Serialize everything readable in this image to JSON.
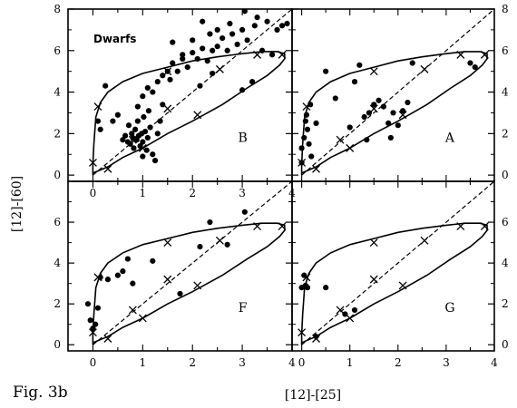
{
  "figure": {
    "caption": "Fig. 3b",
    "xlabel": "[12]-[25]",
    "ylabel": "[12]-[60]",
    "annotation": "Dwarfs"
  },
  "chart_data": [
    {
      "type": "scatter",
      "panel": "B",
      "position": "top-left",
      "xlim": [
        -0.5,
        4
      ],
      "ylim": [
        -0.3,
        8
      ],
      "x_ticks": [
        0,
        1,
        2,
        3,
        4
      ],
      "y_ticks": [
        0,
        2,
        4,
        6,
        8
      ],
      "annotation": "Dwarfs",
      "points": [
        [
          0.1,
          2.6
        ],
        [
          0.15,
          2.2
        ],
        [
          0.25,
          4.3
        ],
        [
          0.4,
          2.6
        ],
        [
          0.5,
          2.9
        ],
        [
          0.6,
          1.7
        ],
        [
          0.65,
          1.9
        ],
        [
          0.7,
          1.6
        ],
        [
          0.72,
          2.4
        ],
        [
          0.75,
          1.5
        ],
        [
          0.78,
          2.0
        ],
        [
          0.8,
          1.8
        ],
        [
          0.82,
          1.3
        ],
        [
          0.85,
          2.2
        ],
        [
          0.88,
          1.7
        ],
        [
          0.9,
          2.6
        ],
        [
          0.92,
          1.9
        ],
        [
          0.95,
          1.4
        ],
        [
          0.98,
          2.0
        ],
        [
          1.0,
          1.6
        ],
        [
          1.02,
          2.8
        ],
        [
          1.05,
          2.1
        ],
        [
          1.08,
          1.2
        ],
        [
          1.1,
          1.8
        ],
        [
          1.12,
          3.1
        ],
        [
          1.15,
          2.3
        ],
        [
          1.2,
          1.0
        ],
        [
          1.25,
          0.7
        ],
        [
          1.3,
          2.0
        ],
        [
          1.35,
          2.6
        ],
        [
          1.4,
          3.4
        ],
        [
          0.9,
          3.3
        ],
        [
          1.0,
          3.8
        ],
        [
          1.1,
          4.2
        ],
        [
          1.2,
          4.0
        ],
        [
          1.3,
          4.5
        ],
        [
          1.4,
          4.8
        ],
        [
          1.5,
          5.0
        ],
        [
          1.55,
          4.6
        ],
        [
          1.6,
          5.4
        ],
        [
          1.7,
          5.0
        ],
        [
          1.8,
          5.6
        ],
        [
          1.9,
          5.2
        ],
        [
          2.0,
          5.9
        ],
        [
          2.0,
          6.5
        ],
        [
          2.1,
          5.6
        ],
        [
          2.2,
          6.1
        ],
        [
          2.2,
          7.4
        ],
        [
          2.3,
          5.5
        ],
        [
          2.35,
          6.8
        ],
        [
          2.4,
          6.0
        ],
        [
          2.5,
          6.2
        ],
        [
          2.5,
          7.0
        ],
        [
          2.6,
          6.6
        ],
        [
          2.7,
          6.0
        ],
        [
          2.75,
          7.3
        ],
        [
          2.8,
          6.8
        ],
        [
          2.9,
          6.3
        ],
        [
          3.0,
          7.0
        ],
        [
          3.05,
          7.9
        ],
        [
          3.1,
          6.5
        ],
        [
          3.25,
          7.2
        ],
        [
          3.3,
          7.6
        ],
        [
          3.4,
          6.0
        ],
        [
          3.5,
          7.4
        ],
        [
          3.6,
          5.8
        ],
        [
          3.7,
          7.0
        ],
        [
          3.8,
          7.2
        ],
        [
          3.9,
          7.3
        ],
        [
          1.6,
          6.4
        ],
        [
          1.8,
          5.8
        ],
        [
          2.15,
          4.3
        ],
        [
          2.4,
          4.9
        ],
        [
          3.0,
          4.1
        ],
        [
          3.2,
          4.5
        ],
        [
          1.0,
          0.9
        ]
      ]
    },
    {
      "type": "scatter",
      "panel": "A",
      "position": "top-right",
      "xlim": [
        -0.2,
        4
      ],
      "ylim": [
        -0.3,
        8
      ],
      "x_ticks": [],
      "y_ticks": [
        0,
        2,
        4,
        6,
        8
      ],
      "points": [
        [
          0.0,
          0.6
        ],
        [
          0.0,
          1.3
        ],
        [
          0.05,
          1.8
        ],
        [
          0.08,
          2.6
        ],
        [
          0.1,
          2.9
        ],
        [
          0.12,
          2.2
        ],
        [
          0.15,
          1.5
        ],
        [
          0.18,
          3.4
        ],
        [
          0.2,
          0.9
        ],
        [
          0.3,
          2.5
        ],
        [
          0.5,
          5.0
        ],
        [
          0.7,
          3.7
        ],
        [
          1.0,
          2.3
        ],
        [
          1.1,
          4.5
        ],
        [
          1.2,
          5.3
        ],
        [
          1.3,
          2.8
        ],
        [
          1.35,
          1.7
        ],
        [
          1.4,
          3.0
        ],
        [
          1.5,
          3.4
        ],
        [
          1.6,
          3.6
        ],
        [
          1.7,
          3.3
        ],
        [
          1.8,
          2.5
        ],
        [
          1.85,
          1.8
        ],
        [
          1.9,
          3.0
        ],
        [
          2.0,
          2.4
        ],
        [
          2.1,
          3.1
        ],
        [
          2.2,
          3.5
        ],
        [
          2.3,
          5.4
        ],
        [
          3.5,
          5.4
        ],
        [
          3.6,
          5.2
        ]
      ]
    },
    {
      "type": "scatter",
      "panel": "F",
      "position": "bottom-left",
      "xlim": [
        -0.5,
        4
      ],
      "ylim": [
        -0.3,
        8
      ],
      "x_ticks": [
        0,
        1,
        2,
        3,
        4
      ],
      "y_ticks": [
        0,
        2,
        4,
        6
      ],
      "points": [
        [
          -0.1,
          2.0
        ],
        [
          -0.05,
          1.2
        ],
        [
          0.0,
          0.8
        ],
        [
          0.05,
          1.0
        ],
        [
          0.1,
          1.8
        ],
        [
          0.15,
          3.3
        ],
        [
          0.3,
          3.2
        ],
        [
          0.5,
          3.4
        ],
        [
          0.6,
          3.6
        ],
        [
          0.7,
          4.2
        ],
        [
          0.8,
          3.0
        ],
        [
          1.2,
          4.1
        ],
        [
          1.75,
          2.5
        ],
        [
          2.15,
          4.8
        ],
        [
          2.35,
          6.0
        ],
        [
          2.7,
          4.9
        ],
        [
          3.05,
          6.5
        ]
      ]
    },
    {
      "type": "scatter",
      "panel": "G",
      "position": "bottom-right",
      "xlim": [
        -0.2,
        4
      ],
      "ylim": [
        -0.3,
        8
      ],
      "x_ticks": [
        0,
        1,
        2,
        3,
        4
      ],
      "y_ticks": [
        0,
        2,
        4,
        6
      ],
      "points": [
        [
          -0.25,
          2.4
        ],
        [
          0.0,
          2.8
        ],
        [
          0.05,
          3.4
        ],
        [
          0.08,
          2.9
        ],
        [
          0.12,
          2.8
        ],
        [
          0.3,
          0.4
        ],
        [
          0.5,
          2.8
        ],
        [
          0.9,
          1.5
        ],
        [
          1.1,
          1.7
        ]
      ]
    }
  ],
  "model_curves": {
    "loop": [
      [
        0.0,
        0.0
      ],
      [
        0.0,
        0.5
      ],
      [
        0.02,
        1.5
      ],
      [
        0.06,
        2.8
      ],
      [
        0.15,
        3.5
      ],
      [
        0.3,
        4.0
      ],
      [
        0.6,
        4.5
      ],
      [
        1.0,
        4.9
      ],
      [
        1.5,
        5.2
      ],
      [
        2.0,
        5.5
      ],
      [
        2.5,
        5.7
      ],
      [
        3.0,
        5.85
      ],
      [
        3.4,
        5.95
      ],
      [
        3.7,
        5.95
      ],
      [
        3.85,
        5.85
      ],
      [
        3.85,
        5.6
      ],
      [
        3.75,
        5.3
      ],
      [
        3.5,
        4.8
      ],
      [
        3.1,
        4.2
      ],
      [
        2.6,
        3.4
      ],
      [
        2.0,
        2.6
      ],
      [
        1.5,
        2.0
      ],
      [
        1.0,
        1.3
      ],
      [
        0.6,
        0.85
      ],
      [
        0.3,
        0.4
      ],
      [
        0.1,
        0.2
      ],
      [
        0.0,
        0.1
      ],
      [
        0.0,
        0.0
      ]
    ],
    "loop_markers": [
      [
        0.0,
        0.6
      ],
      [
        0.1,
        3.3
      ],
      [
        1.5,
        5.0
      ],
      [
        3.3,
        5.8
      ],
      [
        3.8,
        5.8
      ],
      [
        2.1,
        2.9
      ],
      [
        1.0,
        1.3
      ],
      [
        0.3,
        0.3
      ]
    ],
    "line": [
      [
        0.0,
        0.0
      ],
      [
        4.0,
        8.0
      ]
    ],
    "line_markers": [
      [
        0.8,
        1.7
      ],
      [
        1.5,
        3.2
      ],
      [
        2.55,
        5.1
      ]
    ]
  }
}
